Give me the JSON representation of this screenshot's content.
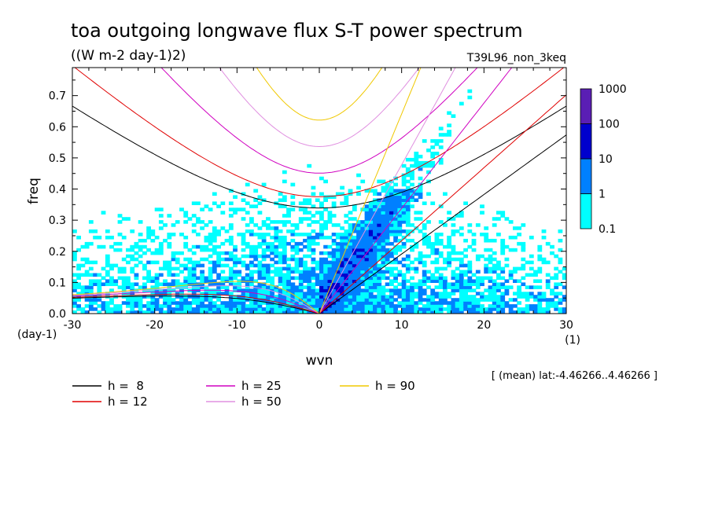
{
  "header": {
    "title": "toa outgoing longwave flux S-T power spectrum",
    "units": "((W m-2 day-1)2)",
    "experiment": "T39L96_non_3keq"
  },
  "footer": {
    "region_note": "[ (mean) lat:-4.46266..4.46266 ]"
  },
  "chart_data": {
    "type": "heatmap",
    "title": "toa outgoing longwave flux S-T power spectrum",
    "xlabel": "wvn",
    "ylabel": "freq",
    "x_unit": "(1)",
    "y_unit": "(day-1)",
    "xlim": [
      -30,
      30
    ],
    "ylim": [
      0,
      0.79
    ],
    "x_ticks": [
      -30,
      -20,
      -10,
      0,
      10,
      20,
      30
    ],
    "x_tick_labels": [
      "-30",
      "-20",
      "-10",
      "0",
      "10",
      "20",
      "30"
    ],
    "y_ticks": [
      0,
      0.1,
      0.2,
      0.3,
      0.4,
      0.5,
      0.6,
      0.7
    ],
    "y_tick_labels": [
      "0.0",
      "0.1",
      "0.2",
      "0.3",
      "0.4",
      "0.5",
      "0.6",
      "0.7"
    ],
    "colorbar": {
      "levels": [
        0.1,
        1,
        10,
        100,
        1000
      ],
      "level_labels": [
        "0.1",
        "1",
        "10",
        "100",
        "1000"
      ],
      "colors": [
        "#00ffff",
        "#0080ff",
        "#0000cd",
        "#5a1eb4"
      ]
    },
    "dispersion_curves": [
      {
        "name": "h =  8",
        "h": 8,
        "color": "#000000"
      },
      {
        "name": "h = 12",
        "h": 12,
        "color": "#e00000"
      },
      {
        "name": "h = 25",
        "h": 25,
        "color": "#d000c0"
      },
      {
        "name": "h = 50",
        "h": 50,
        "color": "#e090e0"
      },
      {
        "name": "h = 90",
        "h": 90,
        "color": "#f0c800"
      }
    ],
    "legend_placement": "bottom-left"
  }
}
